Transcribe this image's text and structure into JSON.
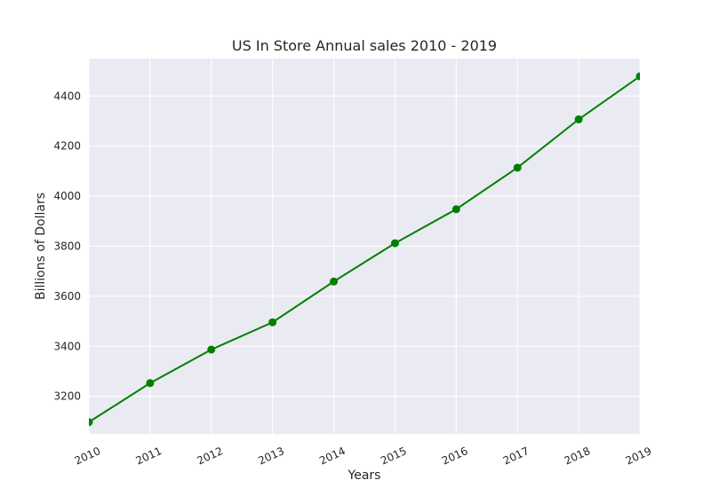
{
  "chart_data": {
    "type": "line",
    "title": "US In Store Annual sales 2010 - 2019",
    "xlabel": "Years",
    "ylabel": "Billions of Dollars",
    "x": [
      "2010",
      "2011",
      "2012",
      "2013",
      "2014",
      "2015",
      "2016",
      "2017",
      "2018",
      "2019"
    ],
    "series": [
      {
        "values": [
          3097,
          3253,
          3387,
          3496,
          3659,
          3812,
          3948,
          4114,
          4307,
          4479
        ]
      }
    ],
    "xlim": [
      2010,
      2019
    ],
    "ylim": [
      3050,
      4550
    ],
    "yticks": [
      3200,
      3400,
      3600,
      3800,
      4000,
      4200,
      4400
    ],
    "grid": true,
    "legend": "none",
    "colors": {
      "plot_background": "#eaeaf2",
      "grid": "#ffffff",
      "line": "#008000",
      "text": "#262626"
    }
  }
}
